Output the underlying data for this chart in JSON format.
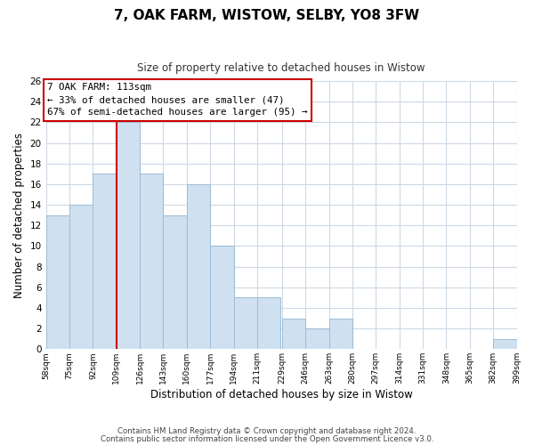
{
  "title": "7, OAK FARM, WISTOW, SELBY, YO8 3FW",
  "subtitle": "Size of property relative to detached houses in Wistow",
  "xlabel": "Distribution of detached houses by size in Wistow",
  "ylabel": "Number of detached properties",
  "bar_color": "#cfe0f0",
  "bar_edgecolor": "#9bbdd6",
  "bin_edges": [
    58,
    75,
    92,
    109,
    126,
    143,
    160,
    177,
    194,
    211,
    229,
    246,
    263,
    280,
    297,
    314,
    331,
    348,
    365,
    382,
    399
  ],
  "bar_heights": [
    13,
    14,
    17,
    22,
    17,
    13,
    16,
    10,
    5,
    5,
    3,
    2,
    3,
    0,
    0,
    0,
    0,
    0,
    0,
    1
  ],
  "redline_x": 109,
  "ylim": [
    0,
    26
  ],
  "yticks": [
    0,
    2,
    4,
    6,
    8,
    10,
    12,
    14,
    16,
    18,
    20,
    22,
    24,
    26
  ],
  "annotation_title": "7 OAK FARM: 113sqm",
  "annotation_line1": "← 33% of detached houses are smaller (47)",
  "annotation_line2": "67% of semi-detached houses are larger (95) →",
  "annotation_box_color": "#ffffff",
  "annotation_box_edgecolor": "#cc0000",
  "footer_line1": "Contains HM Land Registry data © Crown copyright and database right 2024.",
  "footer_line2": "Contains public sector information licensed under the Open Government Licence v3.0.",
  "background_color": "#ffffff",
  "grid_color": "#cdd9e5"
}
